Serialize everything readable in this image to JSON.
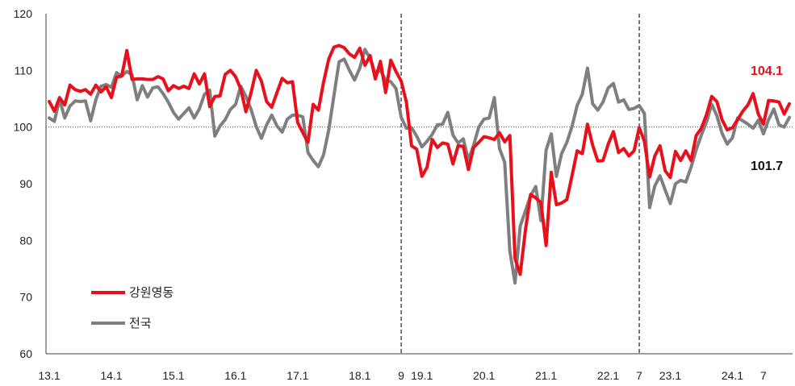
{
  "chart_data": {
    "type": "line",
    "title": "",
    "xlabel": "",
    "ylabel": "",
    "ylim": [
      60,
      120
    ],
    "yticks": [
      60,
      70,
      80,
      90,
      100,
      110,
      120
    ],
    "reference_line": 100,
    "x_tick_labels": [
      "13.1",
      "14.1",
      "15.1",
      "16.1",
      "17.1",
      "18.1",
      "9",
      "19.1",
      "20.1",
      "21.1",
      "22.1",
      "7",
      "23.1",
      "24.1",
      "7"
    ],
    "vertical_markers": [
      "2018-09",
      "2022-07"
    ],
    "x_start": "2013-01",
    "x_end": "2024-09",
    "series": [
      {
        "name": "강원영동",
        "color": "#e8101a",
        "end_label": "104.1",
        "values": [
          104.5,
          102.8,
          105.2,
          103.9,
          107.4,
          106.6,
          106.3,
          106.6,
          105.8,
          107.4,
          106.2,
          107.1,
          105.2,
          108.8,
          109.0,
          113.5,
          108.4,
          108.5,
          108.5,
          108.4,
          108.4,
          108.9,
          108.5,
          106.4,
          107.3,
          106.8,
          107.2,
          106.8,
          109.4,
          107.6,
          109.4,
          103.6,
          105.4,
          105.5,
          109.3,
          110.0,
          108.9,
          106.7,
          102.7,
          106.1,
          110.0,
          108.1,
          104.5,
          103.5,
          106.1,
          108.6,
          107.8,
          108.0,
          100.8,
          99.0,
          97.3,
          104.0,
          103.0,
          107.9,
          112.0,
          114.1,
          114.4,
          114.0,
          112.9,
          112.3,
          113.9,
          110.9,
          112.6,
          108.5,
          111.6,
          106.1,
          111.8,
          109.8,
          108.1,
          104.4,
          96.7,
          96.1,
          91.3,
          92.9,
          97.8,
          96.4,
          97.2,
          97.0,
          93.5,
          96.7,
          96.6,
          92.5,
          96.4,
          97.3,
          98.3,
          98.1,
          97.8,
          99.0,
          97.4,
          98.5,
          76.8,
          74.0,
          81.8,
          88.1,
          87.5,
          86.7,
          79.1,
          92.0,
          86.3,
          86.6,
          87.2,
          91.4,
          95.8,
          95.3,
          100.5,
          96.8,
          94.0,
          94.1,
          97.0,
          99.2,
          95.5,
          96.2,
          94.9,
          95.8,
          99.9,
          97.5,
          91.2,
          94.9,
          96.7,
          92.3,
          91.1,
          95.7,
          94.1,
          95.8,
          94.1,
          98.5,
          99.8,
          102.2,
          105.4,
          104.5,
          101.3,
          99.5,
          99.9,
          101.3,
          102.8,
          103.9,
          105.9,
          102.3,
          100.5,
          104.7,
          104.6,
          104.4,
          102.3,
          104.1
        ]
      },
      {
        "name": "전국",
        "color": "#7f7f7f",
        "end_label": "101.7",
        "values": [
          101.6,
          101.0,
          104.9,
          101.6,
          103.7,
          104.6,
          104.5,
          104.6,
          101.1,
          104.8,
          107.2,
          107.5,
          107.0,
          109.6,
          109.0,
          109.8,
          109.2,
          104.8,
          107.3,
          105.3,
          106.9,
          107.1,
          105.9,
          104.4,
          102.6,
          101.4,
          102.4,
          103.4,
          101.6,
          103.2,
          105.8,
          106.5,
          98.4,
          100.2,
          101.3,
          103.1,
          104.0,
          107.2,
          105.4,
          103.1,
          100.1,
          98.0,
          100.4,
          102.1,
          100.2,
          99.1,
          101.4,
          102.1,
          102.1,
          101.8,
          95.5,
          94.1,
          93.0,
          95.1,
          99.5,
          105.5,
          111.5,
          112.0,
          110.0,
          108.3,
          110.4,
          113.7,
          112.1,
          109.5,
          110.0,
          108.3,
          108.0,
          106.8,
          101.7,
          99.8,
          99.9,
          98.4,
          96.5,
          97.5,
          98.7,
          100.4,
          100.5,
          102.6,
          98.6,
          97.2,
          97.9,
          94.2,
          96.8,
          100.0,
          101.4,
          101.6,
          105.2,
          96.2,
          93.8,
          78.1,
          72.5,
          82.5,
          85.2,
          87.9,
          89.5,
          83.5,
          95.9,
          98.8,
          91.3,
          95.3,
          97.3,
          100.1,
          103.8,
          105.8,
          110.4,
          104.1,
          103.0,
          104.4,
          106.9,
          107.7,
          104.4,
          104.8,
          103.1,
          103.3,
          103.8,
          102.4,
          85.8,
          89.6,
          91.4,
          88.9,
          86.5,
          90.0,
          90.6,
          90.3,
          92.9,
          96.0,
          98.6,
          100.9,
          104.0,
          102.0,
          98.9,
          97.0,
          98.1,
          101.6,
          101.1,
          100.5,
          99.8,
          101.2,
          98.8,
          101.3,
          103.2,
          100.4,
          100.0,
          101.7
        ]
      }
    ],
    "legend": {
      "position": "bottom-left",
      "entries": [
        "강원영동",
        "전국"
      ]
    }
  }
}
